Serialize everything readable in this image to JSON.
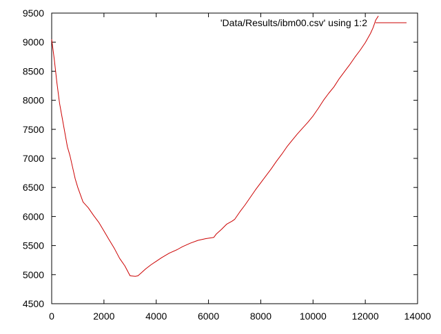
{
  "chart_data": {
    "type": "line",
    "title": "",
    "xlabel": "",
    "ylabel": "",
    "xlim": [
      0,
      14000
    ],
    "ylim": [
      4500,
      9500
    ],
    "x_ticks": [
      0,
      2000,
      4000,
      6000,
      8000,
      10000,
      12000,
      14000
    ],
    "y_ticks": [
      4500,
      5000,
      5500,
      6000,
      6500,
      7000,
      7500,
      8000,
      8500,
      9000,
      9500
    ],
    "x_tick_labels": [
      "0",
      "2000",
      "4000",
      "6000",
      "8000",
      "10000",
      "12000",
      "14000"
    ],
    "y_tick_labels": [
      "4500",
      "5000",
      "5500",
      "6000",
      "6500",
      "7000",
      "7500",
      "8000",
      "8500",
      "9000",
      "9500"
    ],
    "grid": false,
    "legend_position": "top-right",
    "colors": {
      "series": "#cc0000",
      "axes": "#000000",
      "background": "#ffffff"
    },
    "series": [
      {
        "name": "'Data/Results/ibm00.csv' using 1:2",
        "x": [
          0,
          100,
          200,
          300,
          400,
          500,
          600,
          700,
          800,
          900,
          1000,
          1200,
          1400,
          1600,
          1800,
          2000,
          2200,
          2400,
          2600,
          2800,
          3000,
          3200,
          3300,
          3400,
          3600,
          3800,
          4000,
          4200,
          4500,
          4800,
          5000,
          5300,
          5600,
          5900,
          6200,
          6300,
          6500,
          6700,
          6900,
          7000,
          7200,
          7400,
          7600,
          7800,
          8000,
          8200,
          8400,
          8600,
          8800,
          9000,
          9200,
          9400,
          9600,
          9800,
          10000,
          10200,
          10400,
          10600,
          10800,
          11000,
          11200,
          11400,
          11600,
          11800,
          12000,
          12200,
          12300,
          12400,
          12500
        ],
        "values": [
          9050,
          8700,
          8300,
          7950,
          7700,
          7450,
          7200,
          7050,
          6850,
          6650,
          6500,
          6250,
          6150,
          6020,
          5900,
          5750,
          5600,
          5450,
          5280,
          5150,
          4980,
          4970,
          4980,
          5020,
          5100,
          5170,
          5230,
          5290,
          5370,
          5430,
          5480,
          5540,
          5590,
          5620,
          5640,
          5700,
          5780,
          5870,
          5920,
          5950,
          6080,
          6200,
          6330,
          6460,
          6580,
          6700,
          6820,
          6950,
          7070,
          7200,
          7310,
          7420,
          7520,
          7620,
          7730,
          7860,
          8000,
          8120,
          8230,
          8370,
          8490,
          8610,
          8740,
          8860,
          8990,
          9150,
          9250,
          9380,
          9450
        ]
      }
    ]
  }
}
